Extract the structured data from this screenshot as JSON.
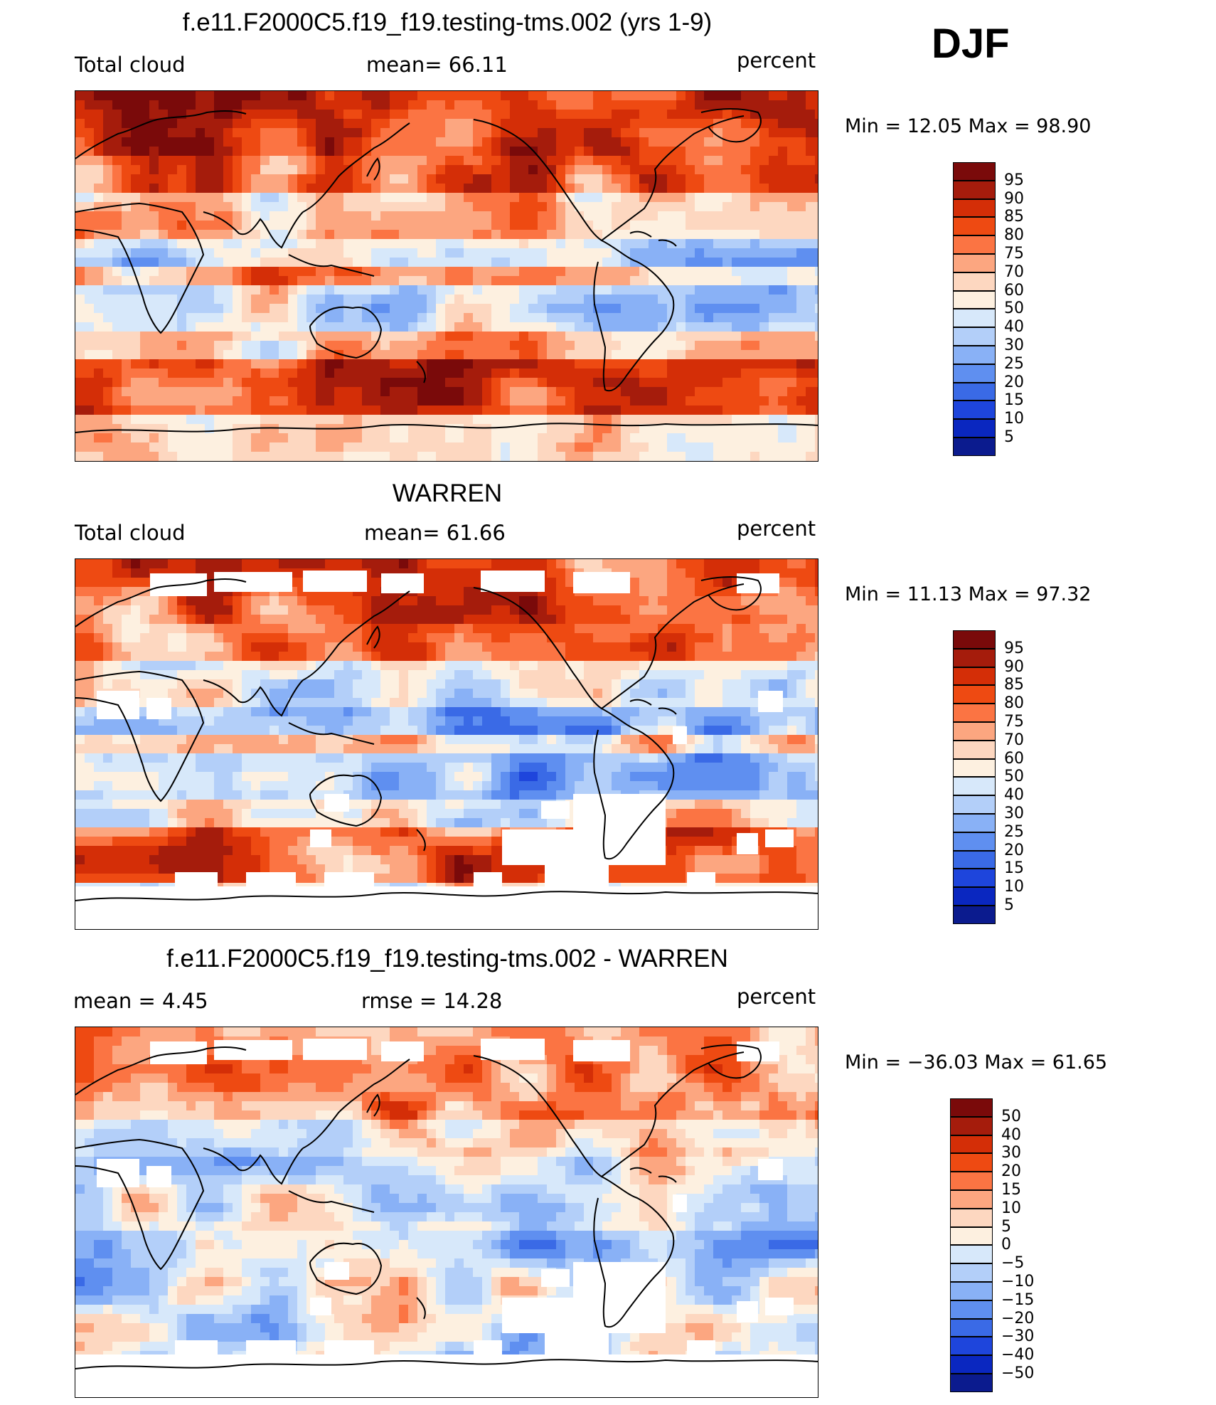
{
  "season": "DJF",
  "panels": [
    {
      "title": "f.e11.F2000C5.f19_f19.testing-tms.002 (yrs 1-9)",
      "left_label": "Total cloud",
      "center_label": "mean=   66.11",
      "right_label": "percent",
      "minmax": "Min =    12.05 Max =    98.90",
      "field_type": "model",
      "colorbar": {
        "colors": [
          "#7a0a0a",
          "#a51c0c",
          "#d42e07",
          "#ee4a12",
          "#fb7443",
          "#fca680",
          "#fdd7c0",
          "#fdf0e0",
          "#d7e8fa",
          "#b3cff9",
          "#89b1f6",
          "#5f8ff0",
          "#3a6ae6",
          "#1e45dc",
          "#0a27c0",
          "#0b1b8e"
        ],
        "labels": [
          "95",
          "90",
          "85",
          "80",
          "75",
          "70",
          "60",
          "50",
          "40",
          "30",
          "25",
          "20",
          "15",
          "10",
          "5"
        ]
      }
    },
    {
      "title": "WARREN",
      "left_label": "Total cloud",
      "center_label": "mean=   61.66",
      "right_label": "percent",
      "minmax": "Min =    11.13 Max =    97.32",
      "field_type": "obs",
      "colorbar": {
        "colors": [
          "#7a0a0a",
          "#a51c0c",
          "#d42e07",
          "#ee4a12",
          "#fb7443",
          "#fca680",
          "#fdd7c0",
          "#fdf0e0",
          "#d7e8fa",
          "#b3cff9",
          "#89b1f6",
          "#5f8ff0",
          "#3a6ae6",
          "#1e45dc",
          "#0a27c0",
          "#0b1b8e"
        ],
        "labels": [
          "95",
          "90",
          "85",
          "80",
          "75",
          "70",
          "60",
          "50",
          "40",
          "30",
          "25",
          "20",
          "15",
          "10",
          "5"
        ]
      }
    },
    {
      "title": "f.e11.F2000C5.f19_f19.testing-tms.002 - WARREN",
      "left_label": "mean =     4.45",
      "center_label": "rmse =    14.28",
      "right_label": "percent",
      "minmax": "Min = −36.03 Max =    61.65",
      "field_type": "diff",
      "colorbar": {
        "colors": [
          "#7a0a0a",
          "#a51c0c",
          "#d42e07",
          "#ee4a12",
          "#fb7443",
          "#fca680",
          "#fdd7c0",
          "#fdf0e0",
          "#d7e8fa",
          "#b3cff9",
          "#89b1f6",
          "#5f8ff0",
          "#3a6ae6",
          "#1e45dc",
          "#0a27c0",
          "#0b1b8e"
        ],
        "labels": [
          "50",
          "40",
          "30",
          "20",
          "15",
          "10",
          "5",
          "0",
          "−5",
          "−10",
          "−15",
          "−20",
          "−30",
          "−40",
          "−50"
        ]
      }
    }
  ]
}
